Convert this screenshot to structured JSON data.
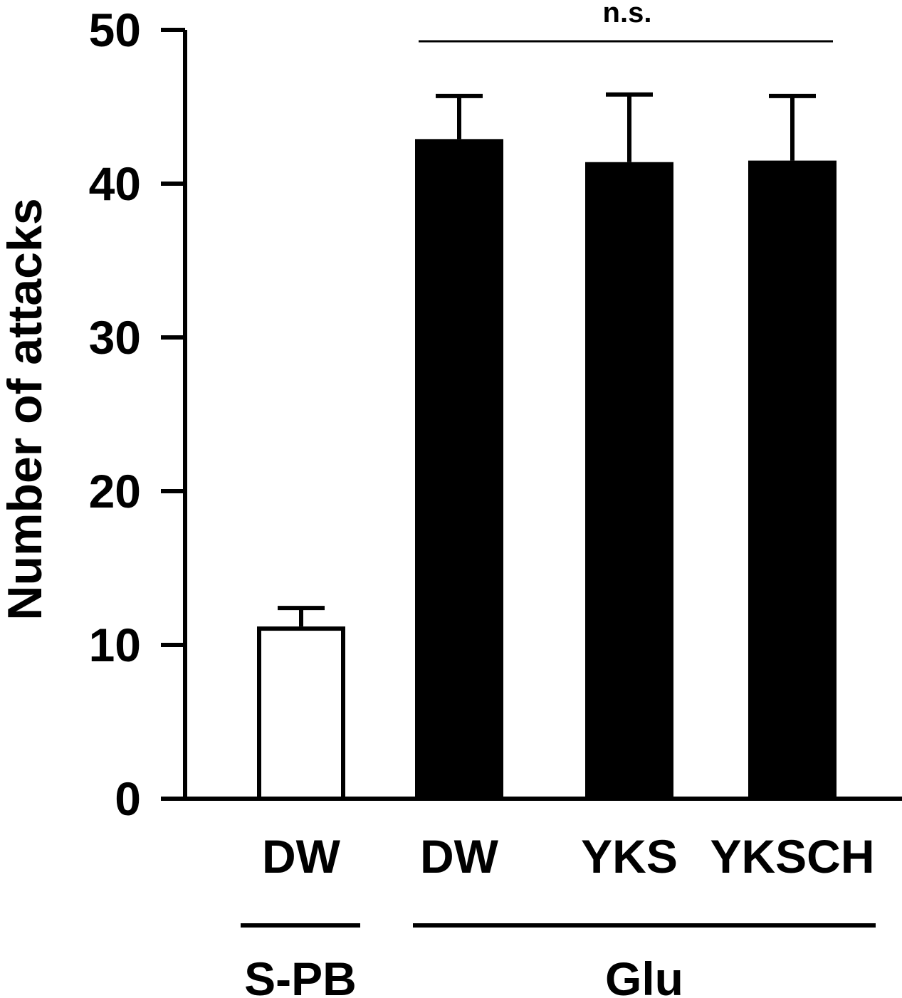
{
  "chart_data": {
    "type": "bar",
    "title": "",
    "xlabel": "",
    "ylabel": "Number of attacks",
    "ylim": [
      0,
      50
    ],
    "yticks": [
      0,
      10,
      20,
      30,
      40,
      50
    ],
    "categories": [
      "DW",
      "DW",
      "YKS",
      "YKSCH"
    ],
    "values": [
      11.2,
      42.9,
      41.4,
      41.5
    ],
    "errors": [
      1.2,
      2.8,
      4.4,
      4.2
    ],
    "fill": [
      "#ffffff",
      "#000000",
      "#000000",
      "#000000"
    ],
    "groups": [
      {
        "label": "S-PB",
        "members": [
          0
        ]
      },
      {
        "label": "Glu",
        "members": [
          1,
          2,
          3
        ]
      }
    ],
    "significance": {
      "label": "n.s.",
      "from": 1,
      "to": 3
    },
    "grid": false,
    "legend": "none"
  }
}
